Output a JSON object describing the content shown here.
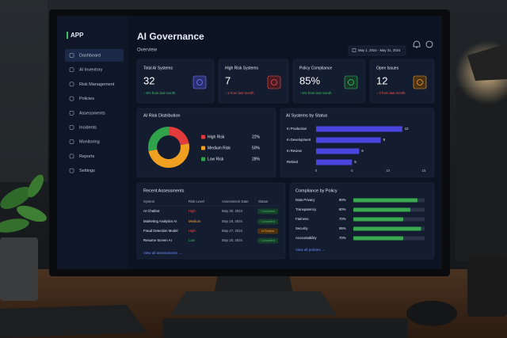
{
  "sidebar": {
    "logo": "APP",
    "nav": [
      "Dashboard",
      "AI Inventory",
      "Risk Management",
      "Policies",
      "Assessments",
      "Incidents",
      "Monitoring",
      "Reports",
      "Settings"
    ]
  },
  "header": {
    "title": "AI Governance",
    "subtitle": "Overview",
    "date_range": "May 1, 2024 - May 31, 2024"
  },
  "kpis": [
    {
      "title": "Total AI Systems",
      "value": "32",
      "change": "↑ 8% from last month"
    },
    {
      "title": "High Risk Systems",
      "value": "7",
      "change": "↑ 2 from last month"
    },
    {
      "title": "Policy Compliance",
      "value": "85%",
      "change": "↑ 5% from last month"
    },
    {
      "title": "Open Issues",
      "value": "12",
      "change": "↓ 3 from last month"
    }
  ],
  "risk_distribution": {
    "type": "pie",
    "title": "AI Risk Distribution",
    "categories": [
      "High Risk",
      "Medium Risk",
      "Low Risk"
    ],
    "values": [
      22,
      50,
      28
    ],
    "value_labels": [
      "22%",
      "50%",
      "28%"
    ],
    "colors": [
      "#e23b3b",
      "#f0a020",
      "#2fa24a"
    ]
  },
  "status_chart": {
    "type": "bar",
    "title": "AI Systems by Status",
    "categories": [
      "In Production",
      "In Development",
      "In Review",
      "Retired"
    ],
    "values": [
      12,
      9,
      6,
      5
    ],
    "color": "#4b45e0",
    "xlim": [
      0,
      15
    ],
    "xticks": [
      0,
      5,
      10,
      15
    ]
  },
  "assessments": {
    "title": "Recent Assessments",
    "columns": [
      "System",
      "Risk Level",
      "Assessment Date",
      "Status"
    ],
    "rows": [
      [
        "AI Chatbot",
        "High",
        "May 30, 2024",
        "Completed"
      ],
      [
        "Marketing Analytics AI",
        "Medium",
        "May 29, 2024",
        "Completed"
      ],
      [
        "Fraud Detection Model",
        "High",
        "May 27, 2024",
        "In Review"
      ],
      [
        "Resume Screen AI",
        "Low",
        "May 25, 2024",
        "Completed"
      ]
    ],
    "link": "View all assessments →"
  },
  "compliance": {
    "type": "bar",
    "title": "Compliance by Policy",
    "categories": [
      "Data Privacy",
      "Transparency",
      "Fairness",
      "Security",
      "Accountability"
    ],
    "values": [
      90,
      80,
      70,
      95,
      70
    ],
    "value_labels": [
      "90%",
      "80%",
      "70%",
      "95%",
      "70%"
    ],
    "color": "#3aa84f",
    "xlim": [
      0,
      100
    ],
    "link": "View all policies →"
  }
}
